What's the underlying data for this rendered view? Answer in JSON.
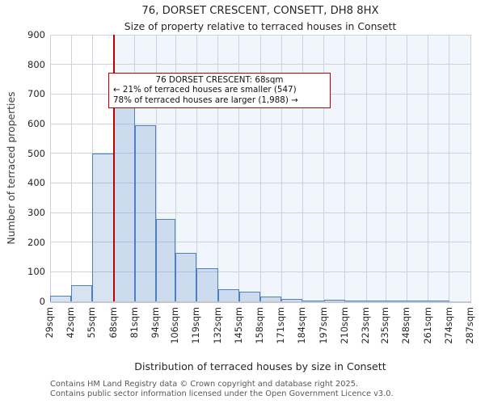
{
  "title": "76, DORSET CRESCENT, CONSETT, DH8 8HX",
  "subtitle": "Size of property relative to terraced houses in Consett",
  "annotation": {
    "line1": "76 DORSET CRESCENT: 68sqm",
    "line2": "← 21% of terraced houses are smaller (547)",
    "line3": "78% of terraced houses are larger (1,988) →"
  },
  "footer": {
    "line1": "Contains HM Land Registry data © Crown copyright and database right 2025.",
    "line2": "Contains public sector information licensed under the Open Government Licence v3.0."
  },
  "chart_data": {
    "type": "bar",
    "title": "76, DORSET CRESCENT, CONSETT, DH8 8HX",
    "subtitle": "Size of property relative to terraced houses in Consett",
    "xlabel": "Distribution of terraced houses by size in Consett",
    "ylabel": "Number of terraced properties",
    "x_tick_labels": [
      "29sqm",
      "42sqm",
      "55sqm",
      "68sqm",
      "81sqm",
      "94sqm",
      "106sqm",
      "119sqm",
      "132sqm",
      "145sqm",
      "158sqm",
      "171sqm",
      "184sqm",
      "197sqm",
      "210sqm",
      "223sqm",
      "235sqm",
      "248sqm",
      "261sqm",
      "274sqm",
      "287sqm"
    ],
    "bin_edges_sqm": [
      29,
      42,
      55,
      68,
      81,
      94,
      106,
      119,
      132,
      145,
      158,
      171,
      184,
      197,
      210,
      223,
      235,
      248,
      261,
      274,
      287
    ],
    "values": [
      20,
      55,
      500,
      695,
      595,
      278,
      165,
      113,
      41,
      32,
      16,
      8,
      2,
      5,
      2,
      3,
      2,
      2,
      1,
      0
    ],
    "ylim": [
      0,
      900
    ],
    "y_ticks": [
      0,
      100,
      200,
      300,
      400,
      500,
      600,
      700,
      800,
      900
    ],
    "x_range_sqm": [
      29,
      287
    ],
    "grid": true,
    "marker_value_sqm": 68,
    "colors": {
      "marker_line": "#bb0000",
      "bar_fill": "rgba(79,129,189,0.22)",
      "bar_border": "#4e80c0",
      "gridline": "#ccd3df",
      "larger_region_bg": "#f1f5fc",
      "annotation_border": "#bb0000"
    }
  }
}
